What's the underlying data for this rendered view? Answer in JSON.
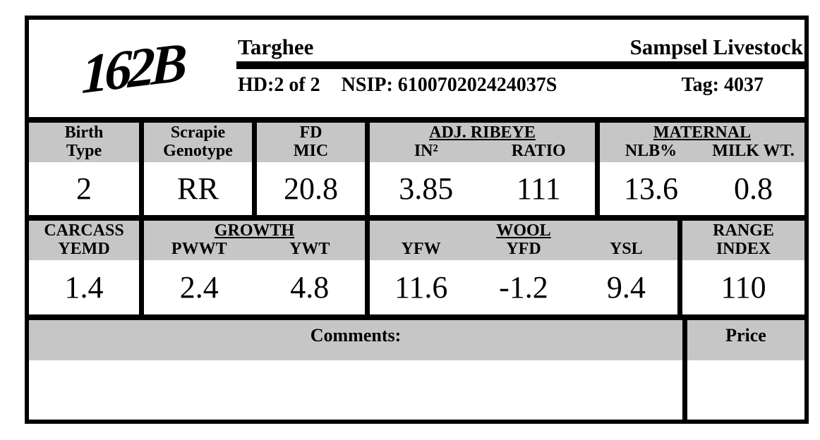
{
  "header": {
    "logo": "162B",
    "breed": "Targhee",
    "ranch": "Sampsel Livestock",
    "hd": "HD:2 of 2",
    "nsip": "NSIP: 610070202424037S",
    "tag": "Tag: 4037"
  },
  "row1": {
    "birth": {
      "line1": "Birth",
      "line2": "Type",
      "value": "2"
    },
    "scrapie": {
      "line1": "Scrapie",
      "line2": "Genotype",
      "value": "RR"
    },
    "fd": {
      "line1": "FD",
      "line2": "MIC",
      "value": "20.8"
    },
    "ribeye": {
      "title": "ADJ. RIBEYE",
      "col1_label": "IN²",
      "col2_label": "RATIO",
      "col1_value": "3.85",
      "col2_value": "111"
    },
    "maternal": {
      "title": "MATERNAL",
      "col1_label": "NLB%",
      "col2_label": "MILK WT.",
      "col1_value": "13.6",
      "col2_value": "0.8"
    }
  },
  "row2": {
    "carcass": {
      "line1": "CARCASS",
      "line2": "YEMD",
      "value": "1.4"
    },
    "growth": {
      "title": "GROWTH",
      "col1_label": "PWWT",
      "col2_label": "YWT",
      "col1_value": "2.4",
      "col2_value": "4.8"
    },
    "wool": {
      "title": "WOOL",
      "col1_label": "YFW",
      "col2_label": "YFD",
      "col3_label": "YSL",
      "col1_value": "11.6",
      "col2_value": "-1.2",
      "col3_value": "9.4"
    },
    "range": {
      "line1": "RANGE",
      "line2": "INDEX",
      "value": "110"
    }
  },
  "footer": {
    "comments_label": "Comments:",
    "price_label": "Price",
    "comments_value": "",
    "price_value": ""
  },
  "colors": {
    "header_band": "#c6c6c6",
    "border": "#000000"
  }
}
